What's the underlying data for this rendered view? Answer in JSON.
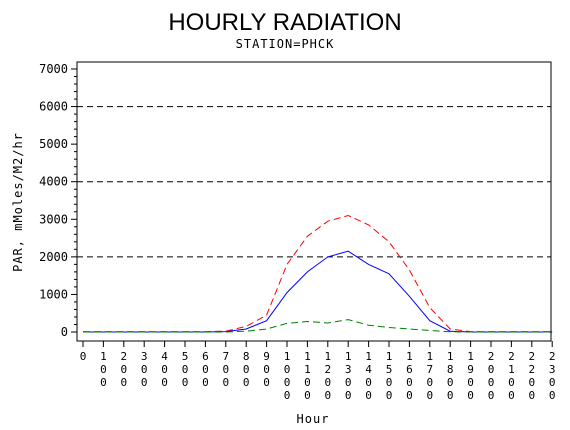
{
  "chart_data": {
    "type": "line",
    "title": "HOURLY RADIATION",
    "subtitle": "STATION=PHCK",
    "xlabel": "Hour",
    "ylabel": "PAR, mMoles/M2/hr",
    "ylim": [
      0,
      7000
    ],
    "yticks": [
      "0",
      "1000",
      "2000",
      "3000",
      "4000",
      "5000",
      "6000",
      "7000"
    ],
    "xticks": [
      "0",
      "100",
      "200",
      "300",
      "400",
      "500",
      "600",
      "700",
      "800",
      "900",
      "1000",
      "1100",
      "1200",
      "1300",
      "1400",
      "1500",
      "1600",
      "1700",
      "1800",
      "1900",
      "2000",
      "2100",
      "2200",
      "2300"
    ],
    "x": [
      0,
      100,
      200,
      300,
      400,
      500,
      600,
      700,
      800,
      900,
      1000,
      1100,
      1200,
      1300,
      1400,
      1500,
      1600,
      1700,
      1800,
      1900,
      2000,
      2100,
      2200,
      2300
    ],
    "gridlines_y": [
      2000,
      4000,
      6000
    ],
    "legend": "none",
    "series": [
      {
        "color": "#ff0000",
        "style": "dashed",
        "values": [
          10,
          10,
          10,
          10,
          10,
          10,
          10,
          20,
          150,
          450,
          1800,
          2550,
          2950,
          3100,
          2850,
          2400,
          1650,
          650,
          80,
          10,
          10,
          10,
          10,
          10
        ]
      },
      {
        "color": "#0000ff",
        "style": "solid",
        "values": [
          0,
          0,
          0,
          0,
          0,
          0,
          0,
          10,
          80,
          300,
          1050,
          1600,
          2000,
          2150,
          1800,
          1550,
          950,
          300,
          20,
          0,
          0,
          0,
          0,
          0
        ]
      },
      {
        "color": "#008000",
        "style": "dashed",
        "values": [
          0,
          0,
          0,
          0,
          0,
          0,
          0,
          0,
          20,
          80,
          230,
          280,
          240,
          330,
          180,
          120,
          80,
          40,
          5,
          0,
          0,
          0,
          0,
          0
        ]
      }
    ]
  }
}
